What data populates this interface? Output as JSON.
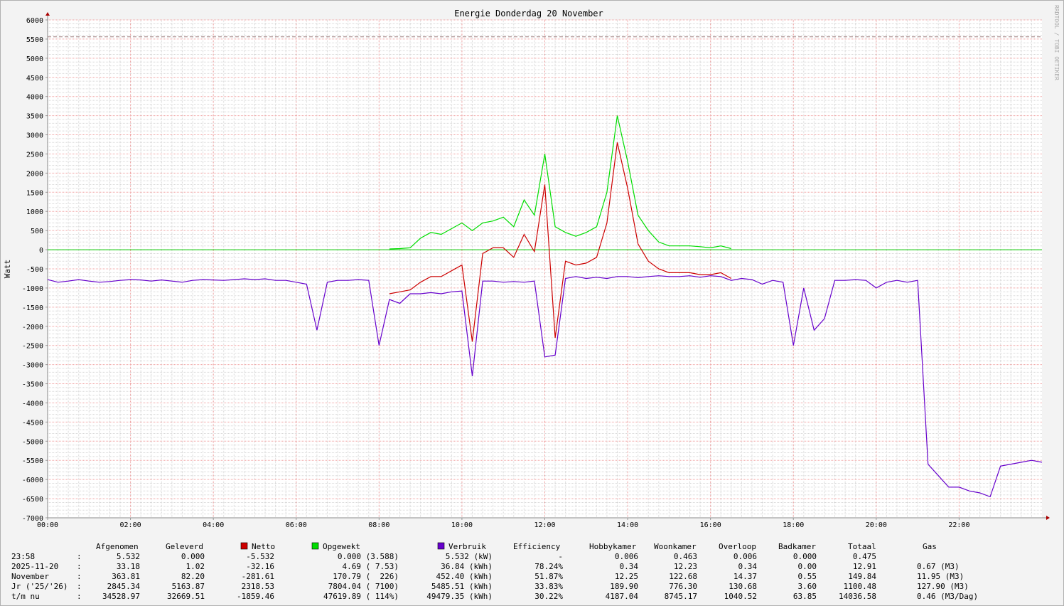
{
  "chart_data": {
    "type": "line",
    "title": "Energie Donderdag 20 November",
    "y_label": "Watt",
    "side_note": "RRDTOOL / TOBI OETIKER",
    "xlim": [
      0,
      24
    ],
    "xticks": [
      {
        "value": 0,
        "label": "00:00"
      },
      {
        "value": 2,
        "label": "02:00"
      },
      {
        "value": 4,
        "label": "04:00"
      },
      {
        "value": 6,
        "label": "06:00"
      },
      {
        "value": 8,
        "label": "08:00"
      },
      {
        "value": 10,
        "label": "10:00"
      },
      {
        "value": 12,
        "label": "12:00"
      },
      {
        "value": 14,
        "label": "14:00"
      },
      {
        "value": 16,
        "label": "16:00"
      },
      {
        "value": 18,
        "label": "18:00"
      },
      {
        "value": 20,
        "label": "20:00"
      },
      {
        "value": 22,
        "label": "22:00"
      }
    ],
    "ylim": [
      -7000,
      6000
    ],
    "yticks": [
      -7000,
      -6500,
      -6000,
      -5500,
      -5000,
      -4500,
      -4000,
      -3500,
      -3000,
      -2500,
      -2000,
      -1500,
      -1000,
      -500,
      0,
      500,
      1000,
      1500,
      2000,
      2500,
      3000,
      3500,
      4000,
      4500,
      5000,
      5500,
      6000
    ],
    "grid": true,
    "hrules": [
      {
        "value": 0,
        "color": "#00cc00",
        "dashed": false
      },
      {
        "value": 5560,
        "color": "#a08080",
        "dashed": true
      }
    ],
    "x": [
      0,
      0.25,
      0.5,
      0.75,
      1,
      1.25,
      1.5,
      1.75,
      2,
      2.25,
      2.5,
      2.75,
      3,
      3.25,
      3.5,
      3.75,
      4,
      4.25,
      4.5,
      4.75,
      5,
      5.25,
      5.5,
      5.75,
      6,
      6.25,
      6.5,
      6.75,
      7,
      7.25,
      7.5,
      7.75,
      8,
      8.25,
      8.5,
      8.75,
      9,
      9.25,
      9.5,
      9.75,
      10,
      10.25,
      10.5,
      10.75,
      11,
      11.25,
      11.5,
      11.75,
      12,
      12.25,
      12.5,
      12.75,
      13,
      13.25,
      13.5,
      13.75,
      14,
      14.25,
      14.5,
      14.75,
      15,
      15.25,
      15.5,
      15.75,
      16,
      16.25,
      16.5,
      16.75,
      17,
      17.25,
      17.5,
      17.75,
      18,
      18.25,
      18.5,
      18.75,
      19,
      19.25,
      19.5,
      19.75,
      20,
      20.25,
      20.5,
      20.75,
      21,
      21.25,
      21.5,
      21.75,
      22,
      22.25,
      22.5,
      22.75,
      23,
      23.25,
      23.5,
      23.75,
      24
    ],
    "series": [
      {
        "name": "Opgewekt",
        "color": "#00dd00",
        "values": [
          null,
          null,
          null,
          null,
          null,
          null,
          null,
          null,
          null,
          null,
          null,
          null,
          null,
          null,
          null,
          null,
          null,
          null,
          null,
          null,
          null,
          null,
          null,
          null,
          null,
          null,
          null,
          null,
          null,
          null,
          null,
          null,
          null,
          20,
          30,
          50,
          300,
          450,
          400,
          550,
          700,
          500,
          700,
          750,
          850,
          600,
          1300,
          900,
          2500,
          600,
          450,
          350,
          450,
          600,
          1500,
          3500,
          2300,
          900,
          500,
          200,
          100,
          100,
          100,
          80,
          50,
          100,
          30,
          null,
          null,
          null,
          null,
          null,
          null,
          null,
          null,
          null,
          null,
          null,
          null,
          null,
          null,
          null,
          null,
          null,
          null,
          null,
          null,
          null,
          null,
          null,
          null,
          null,
          null,
          null,
          null,
          null,
          null
        ]
      },
      {
        "name": "Netto",
        "color": "#cc0000",
        "values": [
          null,
          null,
          null,
          null,
          null,
          null,
          null,
          null,
          null,
          null,
          null,
          null,
          null,
          null,
          null,
          null,
          null,
          null,
          null,
          null,
          null,
          null,
          null,
          null,
          null,
          null,
          null,
          null,
          null,
          null,
          null,
          null,
          null,
          -1150,
          -1100,
          -1050,
          -850,
          -700,
          -700,
          -550,
          -400,
          -2400,
          -100,
          50,
          50,
          -200,
          400,
          -50,
          1700,
          -2300,
          -300,
          -400,
          -350,
          -200,
          700,
          2800,
          1600,
          150,
          -300,
          -500,
          -600,
          -600,
          -600,
          -650,
          -650,
          -600,
          -750,
          null,
          null,
          null,
          null,
          null,
          null,
          null,
          null,
          null,
          null,
          null,
          null,
          null,
          null,
          null,
          null,
          null,
          null,
          null,
          null,
          null,
          null,
          null,
          null,
          null,
          null,
          null,
          null,
          null,
          null
        ]
      },
      {
        "name": "Verbruik",
        "color": "#6600cc",
        "values": [
          -780,
          -850,
          -820,
          -780,
          -820,
          -850,
          -830,
          -800,
          -780,
          -790,
          -820,
          -790,
          -820,
          -850,
          -800,
          -780,
          -790,
          -800,
          -780,
          -760,
          -780,
          -760,
          -800,
          -800,
          -850,
          -900,
          -2100,
          -850,
          -800,
          -800,
          -780,
          -800,
          -2500,
          -1300,
          -1400,
          -1150,
          -1150,
          -1120,
          -1150,
          -1100,
          -1080,
          -3300,
          -820,
          -820,
          -850,
          -830,
          -850,
          -820,
          -2800,
          -2750,
          -750,
          -700,
          -750,
          -720,
          -750,
          -700,
          -700,
          -730,
          -700,
          -680,
          -700,
          -700,
          -680,
          -720,
          -680,
          -700,
          -800,
          -750,
          -780,
          -900,
          -800,
          -850,
          -2500,
          -1000,
          -2100,
          -1800,
          -800,
          -800,
          -780,
          -800,
          -1000,
          -850,
          -800,
          -850,
          -800,
          -5600,
          -5900,
          -6200,
          -6200,
          -6300,
          -6350,
          -6450,
          -5650,
          -5600,
          -5550,
          -5500,
          -5550
        ]
      }
    ]
  },
  "table": {
    "columns": [
      "Afgenomen",
      "Geleverd",
      "Efficiency",
      "Hobbykamer",
      "Woonkamer",
      "Overloop",
      "Badkamer",
      "Totaal",
      "Gas"
    ],
    "rows": [
      [
        "23:58",
        ":",
        "5.532",
        "0.000",
        "-5.532",
        "0.000 (3.588)",
        "5.532 (kW)",
        "-",
        "0.006",
        "0.463",
        "0.006",
        "0.000",
        "0.475"
      ],
      [
        "2025-11-20",
        ":",
        "33.18",
        "1.02",
        "-32.16",
        "4.69 ( 7.53)",
        "36.84 (kWh)",
        "78.24%",
        "0.34",
        "12.23",
        "0.34",
        "0.00",
        "12.91",
        "0.67 (M3)"
      ],
      [
        "November",
        ":",
        "363.81",
        "82.20",
        "-281.61",
        "170.79 (  226)",
        "452.40 (kWh)",
        "51.87%",
        "12.25",
        "122.68",
        "14.37",
        "0.55",
        "149.84",
        "11.95 (M3)"
      ],
      [
        "Jr ('25/'26)",
        ":",
        "2845.34",
        "5163.87",
        "2318.53",
        "7804.04 ( 7100)",
        "5485.51 (kWh)",
        "33.83%",
        "189.90",
        "776.30",
        "130.68",
        "3.60",
        "1100.48",
        "127.90 (M3)"
      ],
      [
        "t/m nu",
        ":",
        "34528.97",
        "32669.51",
        "-1859.46",
        "47619.89 ( 114%)",
        "49479.35 (kWh)",
        "30.22%",
        "4187.04",
        "8745.17",
        "1040.52",
        "63.85",
        "14036.58",
        "0.46 (M3/Dag)"
      ]
    ]
  }
}
